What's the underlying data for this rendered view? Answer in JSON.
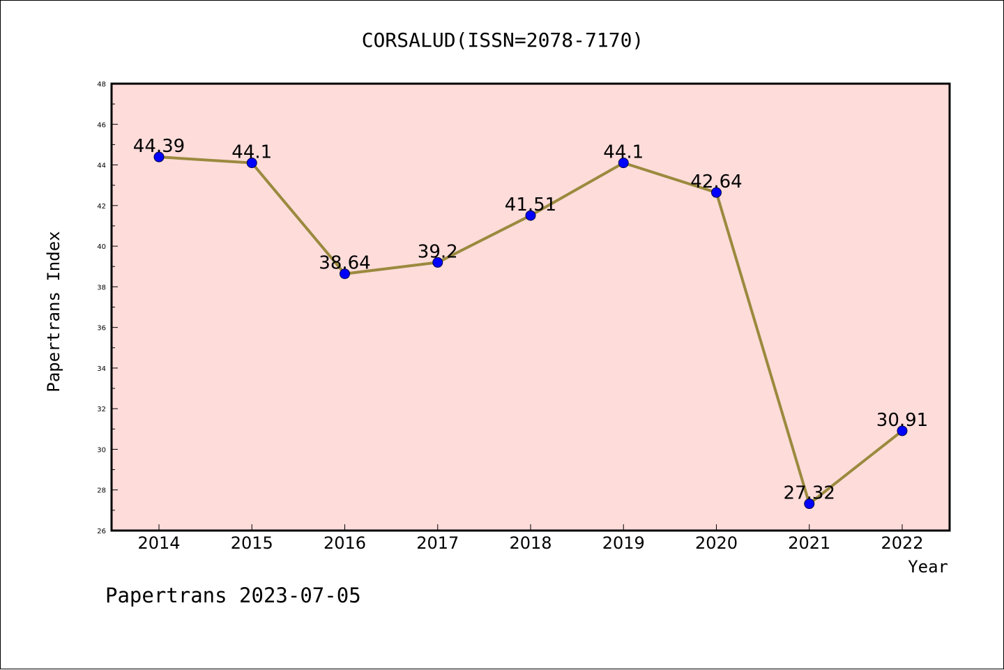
{
  "chart_data": {
    "type": "line",
    "title": "CORSALUD(ISSN=2078-7170)",
    "xlabel": "Year",
    "ylabel": "Papertrans Index",
    "categories": [
      "2014",
      "2015",
      "2016",
      "2017",
      "2018",
      "2019",
      "2020",
      "2021",
      "2022"
    ],
    "series": [
      {
        "values": [
          44.39,
          44.1,
          38.64,
          39.2,
          41.51,
          44.1,
          42.64,
          27.32,
          30.91
        ],
        "data_labels": [
          "44.39",
          "44.1",
          "38.64",
          "39.2",
          "41.51",
          "44.1",
          "42.64",
          "27.32",
          "30.91"
        ]
      }
    ],
    "ylim": [
      26,
      48
    ],
    "yticks": [
      "26",
      "28",
      "30",
      "32",
      "34",
      "36",
      "38",
      "40",
      "42",
      "44",
      "46",
      "48"
    ],
    "grid": false,
    "colors": {
      "plot_background": "#fddcda",
      "line": "#9b8a3e",
      "marker": "#0000ff"
    }
  },
  "footer": "Papertrans 2023-07-05"
}
